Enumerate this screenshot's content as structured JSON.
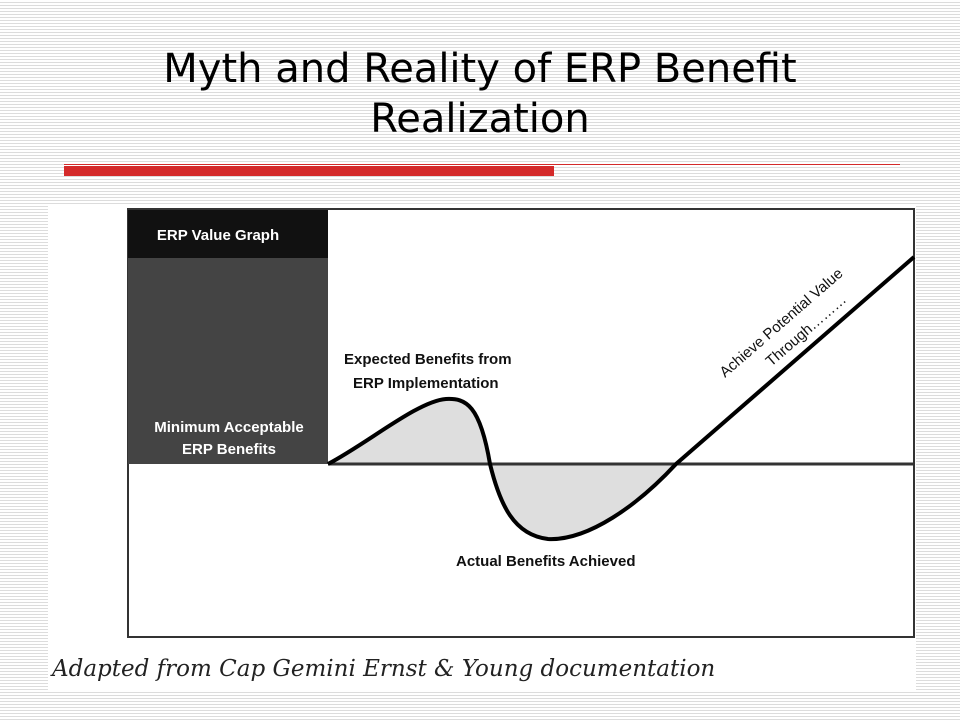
{
  "slide": {
    "title": "Myth and Reality of ERP Benefit Realization",
    "caption": "Adapted from Cap Gemini Ernst & Young documentation"
  },
  "diagram": {
    "header_label": "ERP Value Graph",
    "baseline_label": "Minimum Acceptable ERP Benefits",
    "expected_label_line1": "Expected Benefits from",
    "expected_label_line2": "ERP Implementation",
    "actual_label": "Actual Benefits Achieved",
    "potential_label_line1": "Achieve Potential Value",
    "potential_label_line2": "Through………",
    "colors": {
      "header_bg": "#111111",
      "sidebar_bg": "#444444",
      "fill": "#dedede",
      "accent_red": "#d42a2a"
    }
  }
}
